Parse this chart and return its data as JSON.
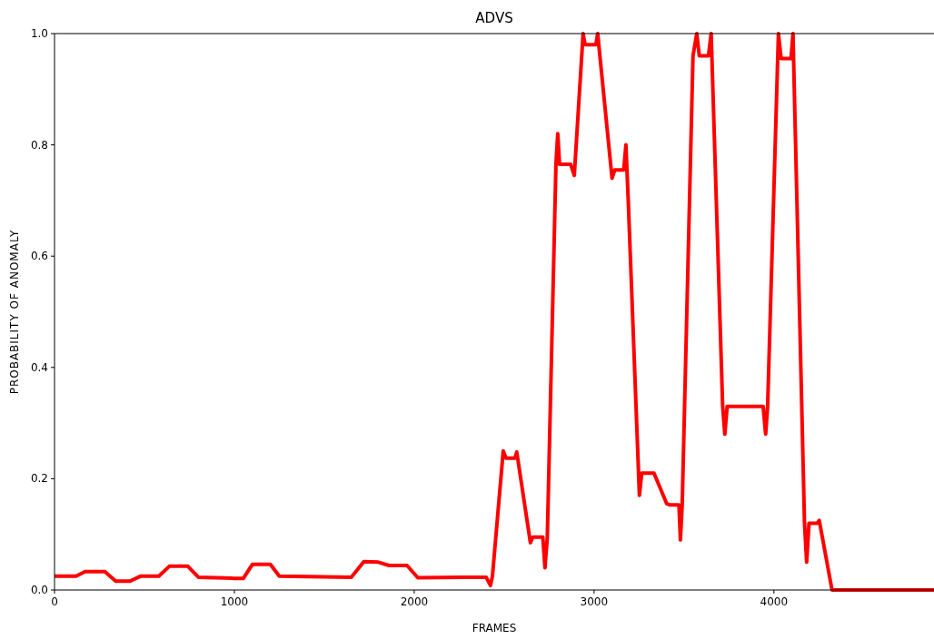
{
  "chart_data": {
    "type": "line",
    "title": "ADVS",
    "xlabel": "FRAMES",
    "ylabel": "PROBABILITY OF ANOMALY",
    "xlim": [
      0,
      4890
    ],
    "xticks": [
      0,
      1000,
      2000,
      3000,
      4000
    ],
    "ylim": [
      0,
      1
    ],
    "yticks": [
      {
        "value": 0,
        "label": "0.0"
      },
      0.2,
      0.4,
      0.6,
      0.8,
      {
        "value": 1,
        "label": "1.0"
      }
    ],
    "series": [
      {
        "color": "#ff0000",
        "x": [
          0,
          120,
          170,
          280,
          340,
          420,
          480,
          580,
          640,
          740,
          800,
          1000,
          1050,
          1100,
          1200,
          1250,
          1650,
          1720,
          1800,
          1860,
          1960,
          2020,
          2400,
          2424,
          2435,
          2495,
          2510,
          2560,
          2570,
          2646,
          2660,
          2715,
          2727,
          2740,
          2788,
          2798,
          2808,
          2870,
          2890,
          2939,
          2950,
          3010,
          3020,
          3100,
          3115,
          3165,
          3177,
          3190,
          3252,
          3265,
          3333,
          3404,
          3420,
          3472,
          3480,
          3490,
          3550,
          3571,
          3585,
          3636,
          3651,
          3715,
          3727,
          3740,
          3940,
          3954,
          3965,
          4025,
          4040,
          4095,
          4106,
          4170,
          4182,
          4195,
          4240,
          4252,
          4323,
          4890
        ],
        "values": [
          0.025,
          0.025,
          0.033,
          0.033,
          0.016,
          0.016,
          0.025,
          0.025,
          0.043,
          0.043,
          0.023,
          0.021,
          0.021,
          0.046,
          0.046,
          0.025,
          0.023,
          0.051,
          0.05,
          0.044,
          0.044,
          0.022,
          0.023,
          0.008,
          0.025,
          0.25,
          0.237,
          0.237,
          0.248,
          0.085,
          0.095,
          0.095,
          0.04,
          0.095,
          0.765,
          0.82,
          0.765,
          0.765,
          0.745,
          1.0,
          0.98,
          0.98,
          1.0,
          0.74,
          0.755,
          0.755,
          0.8,
          0.7,
          0.17,
          0.21,
          0.21,
          0.155,
          0.153,
          0.153,
          0.09,
          0.153,
          0.96,
          1.0,
          0.96,
          0.96,
          1.0,
          0.33,
          0.28,
          0.33,
          0.33,
          0.28,
          0.33,
          1.0,
          0.955,
          0.955,
          1.0,
          0.12,
          0.05,
          0.12,
          0.12,
          0.125,
          0.0,
          0.0
        ]
      }
    ],
    "line_style": "solid"
  }
}
